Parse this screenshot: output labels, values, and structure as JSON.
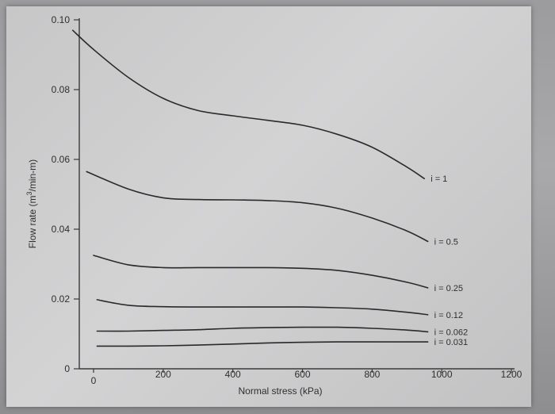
{
  "chart_data": {
    "type": "line",
    "xlabel": "Normal stress (kPa)",
    "ylabel_main": "Flow rate (m",
    "ylabel_sup": "3",
    "ylabel_rest": "/min-m)",
    "xlim": [
      0,
      1200
    ],
    "ylim": [
      0,
      0.1
    ],
    "x_ticks": [
      0,
      200,
      400,
      600,
      800,
      1000,
      1200
    ],
    "x_tick_labels": [
      "0",
      "200",
      "400",
      "600",
      "800",
      "1000",
      "1200"
    ],
    "y_ticks": [
      0,
      0.02,
      0.04,
      0.06,
      0.08,
      0.1
    ],
    "y_tick_labels": [
      "0",
      "0.02",
      "0.04",
      "0.06",
      "0.08",
      "0.10"
    ],
    "grid": false,
    "series": [
      {
        "name": "i = 1",
        "x": [
          -60,
          0,
          100,
          200,
          300,
          400,
          500,
          600,
          700,
          800,
          900,
          950
        ],
        "y": [
          0.097,
          0.0915,
          0.0835,
          0.0775,
          0.074,
          0.0725,
          0.0712,
          0.0698,
          0.0672,
          0.0635,
          0.0578,
          0.0545
        ]
      },
      {
        "name": "i = 0.5",
        "x": [
          -20,
          100,
          200,
          300,
          400,
          500,
          600,
          700,
          800,
          900,
          960
        ],
        "y": [
          0.0565,
          0.0515,
          0.049,
          0.0485,
          0.0484,
          0.0482,
          0.0476,
          0.046,
          0.0432,
          0.0395,
          0.0365
        ]
      },
      {
        "name": "i = 0.25",
        "x": [
          0,
          100,
          200,
          300,
          400,
          500,
          600,
          700,
          800,
          900,
          960
        ],
        "y": [
          0.0325,
          0.0298,
          0.029,
          0.029,
          0.029,
          0.029,
          0.0288,
          0.0282,
          0.0268,
          0.0248,
          0.0232
        ]
      },
      {
        "name": "i = 0.12",
        "x": [
          10,
          100,
          200,
          300,
          400,
          500,
          600,
          700,
          800,
          900,
          960
        ],
        "y": [
          0.0198,
          0.0182,
          0.0178,
          0.0177,
          0.0177,
          0.0177,
          0.0177,
          0.0175,
          0.0171,
          0.0162,
          0.0155
        ]
      },
      {
        "name": "i = 0.062",
        "x": [
          10,
          100,
          200,
          300,
          400,
          500,
          600,
          700,
          800,
          900,
          960
        ],
        "y": [
          0.0108,
          0.0108,
          0.011,
          0.0112,
          0.0116,
          0.0118,
          0.0119,
          0.0119,
          0.0116,
          0.0111,
          0.0106
        ]
      },
      {
        "name": "i = 0.031",
        "x": [
          10,
          100,
          200,
          300,
          400,
          500,
          600,
          700,
          800,
          900,
          960
        ],
        "y": [
          0.0065,
          0.0065,
          0.0066,
          0.0068,
          0.0071,
          0.0074,
          0.0076,
          0.0077,
          0.0077,
          0.0077,
          0.0077
        ]
      }
    ],
    "curve_labels": [
      "i = 1",
      "i = 0.5",
      "i = 0.25",
      "i = 0.12",
      "i = 0.062",
      "i = 0.031"
    ],
    "line_color": "#2a2a2a",
    "background_color": "#cdcdce"
  }
}
